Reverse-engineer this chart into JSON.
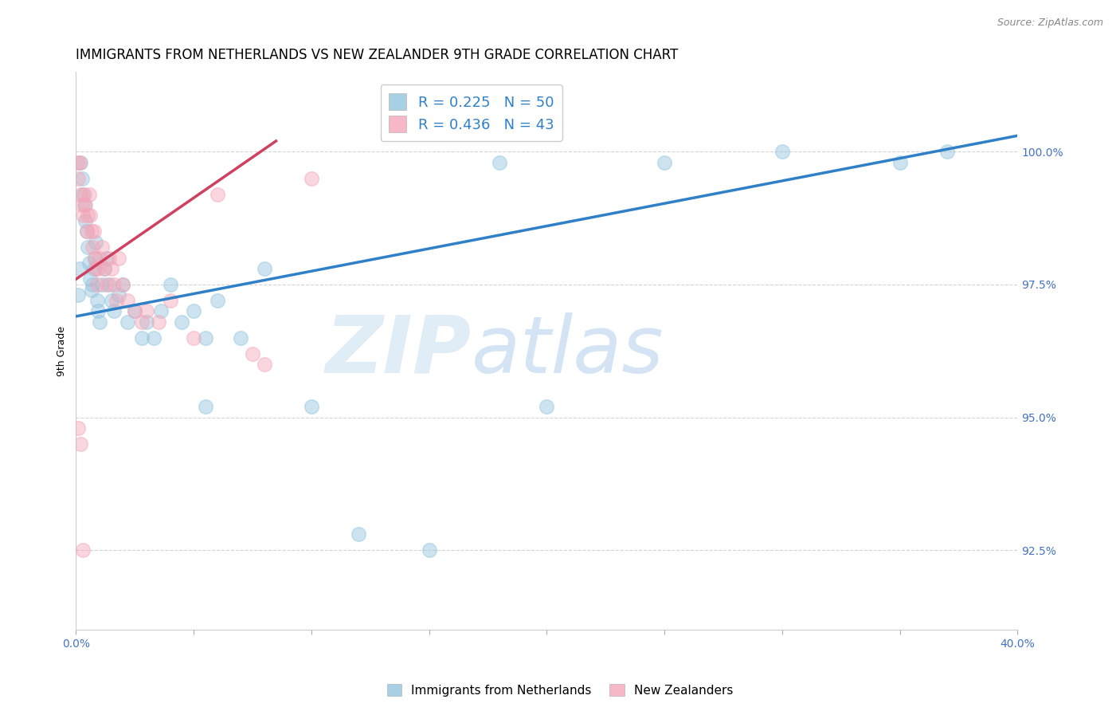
{
  "title": "IMMIGRANTS FROM NETHERLANDS VS NEW ZEALANDER 9TH GRADE CORRELATION CHART",
  "source": "Source: ZipAtlas.com",
  "ylabel": "9th Grade",
  "x_min": 0.0,
  "x_max": 40.0,
  "y_min": 91.0,
  "y_max": 101.5,
  "yticks": [
    92.5,
    95.0,
    97.5,
    100.0
  ],
  "ytick_labels": [
    "92.5%",
    "95.0%",
    "97.5%",
    "100.0%"
  ],
  "blue_color": "#92c5de",
  "pink_color": "#f4a6b8",
  "blue_line_color": "#3080c8",
  "pink_line_color": "#d04060",
  "legend_blue_R": "R = 0.225",
  "legend_blue_N": "N = 50",
  "legend_pink_R": "R = 0.436",
  "legend_pink_N": "N = 43",
  "watermark_zip": "ZIP",
  "watermark_atlas": "atlas",
  "blue_scatter_x": [
    0.1,
    0.15,
    0.2,
    0.25,
    0.3,
    0.35,
    0.4,
    0.45,
    0.5,
    0.55,
    0.6,
    0.65,
    0.7,
    0.75,
    0.8,
    0.85,
    0.9,
    0.95,
    1.0,
    1.1,
    1.2,
    1.3,
    1.4,
    1.5,
    1.6,
    1.8,
    2.0,
    2.2,
    2.5,
    2.8,
    3.0,
    3.3,
    3.6,
    4.0,
    4.5,
    5.0,
    5.5,
    6.0,
    7.0,
    8.0,
    10.0,
    12.0,
    15.0,
    18.0,
    20.0,
    25.0,
    30.0,
    35.0,
    37.0,
    5.5
  ],
  "blue_scatter_y": [
    97.3,
    97.8,
    99.8,
    99.5,
    99.2,
    99.0,
    98.7,
    98.5,
    98.2,
    97.9,
    97.6,
    97.4,
    97.5,
    97.8,
    98.0,
    98.3,
    97.2,
    97.0,
    96.8,
    97.5,
    97.8,
    98.0,
    97.5,
    97.2,
    97.0,
    97.3,
    97.5,
    96.8,
    97.0,
    96.5,
    96.8,
    96.5,
    97.0,
    97.5,
    96.8,
    97.0,
    96.5,
    97.2,
    96.5,
    97.8,
    95.2,
    92.8,
    92.5,
    99.8,
    95.2,
    99.8,
    100.0,
    99.8,
    100.0,
    95.2
  ],
  "pink_scatter_x": [
    0.05,
    0.1,
    0.15,
    0.2,
    0.25,
    0.3,
    0.35,
    0.4,
    0.45,
    0.5,
    0.55,
    0.6,
    0.65,
    0.7,
    0.75,
    0.8,
    0.85,
    0.9,
    0.95,
    1.0,
    1.1,
    1.2,
    1.3,
    1.4,
    1.5,
    1.6,
    1.7,
    1.8,
    2.0,
    2.2,
    2.5,
    2.8,
    3.0,
    3.5,
    4.0,
    5.0,
    6.0,
    7.5,
    8.0,
    10.0,
    0.08,
    0.18,
    0.28
  ],
  "pink_scatter_y": [
    99.8,
    99.5,
    99.8,
    99.2,
    99.0,
    98.8,
    99.2,
    99.0,
    98.5,
    98.8,
    99.2,
    98.8,
    98.5,
    98.2,
    98.5,
    98.0,
    97.8,
    97.5,
    97.8,
    98.0,
    98.2,
    97.8,
    97.5,
    98.0,
    97.8,
    97.5,
    97.2,
    98.0,
    97.5,
    97.2,
    97.0,
    96.8,
    97.0,
    96.8,
    97.2,
    96.5,
    99.2,
    96.2,
    96.0,
    99.5,
    94.8,
    94.5,
    92.5
  ],
  "blue_trendline_x": [
    0.0,
    40.0
  ],
  "blue_trendline_y": [
    96.9,
    100.3
  ],
  "pink_trendline_x": [
    0.0,
    8.5
  ],
  "pink_trendline_y": [
    97.6,
    100.2
  ],
  "marker_size": 160,
  "marker_alpha": 0.45,
  "title_fontsize": 12,
  "axis_label_fontsize": 9,
  "tick_fontsize": 10,
  "axis_tick_color": "#4472c4",
  "background_color": "#ffffff",
  "grid_color": "#c8c8c8",
  "grid_style": "--",
  "grid_alpha": 0.8
}
